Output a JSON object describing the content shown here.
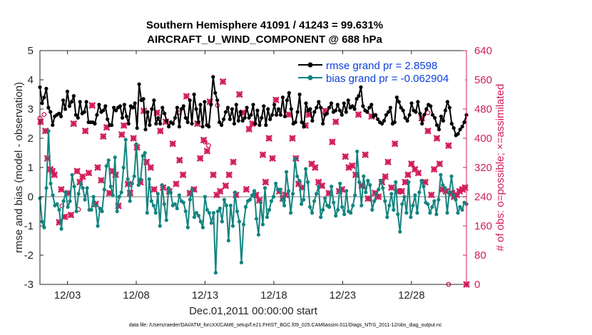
{
  "chart_data": {
    "type": "line",
    "title_line1": "Southern Hemisphere 41091 / 41243 = 99.631%",
    "title_line2": "AIRCRAFT_U_WIND_COMPONENT @ 688 hPa",
    "xlabel": "Dec.01,2011 00:00:00 start",
    "ylabel": "rmse and bias (model - observation)",
    "y2label": "# of obs: o=possible; ×=assimilated",
    "footnote": "data file: /Users/raeder/DAI/ATM_forcXX/CAM6_setup/f.e21.FHIST_BGC.f09_025.CAM6assim.011/Diags_NTrS_2011-12/obs_diag_output.nc",
    "xlim": [
      1,
      32
    ],
    "ylim": [
      -3,
      5
    ],
    "y2lim": [
      0,
      640
    ],
    "x_ticks": [
      3,
      8,
      13,
      18,
      23,
      28
    ],
    "x_tick_labels": [
      "12/03",
      "12/08",
      "12/13",
      "12/18",
      "12/23",
      "12/28"
    ],
    "y_ticks": [
      "-3",
      "-2",
      "-1",
      "0",
      "1",
      "2",
      "3",
      "4",
      "5"
    ],
    "y2_ticks": [
      "0",
      "80",
      "160",
      "240",
      "320",
      "400",
      "480",
      "560",
      "640"
    ],
    "colors": {
      "rmse": "#000000",
      "bias": "#12847f",
      "obs": "#d11d5a",
      "legend_text": "#0b3fe0",
      "zero_line": "#bdbdbd"
    },
    "series": [
      {
        "name": "rmse grand pr = 2.8598",
        "values": [
          3.75,
          3.2,
          3.4,
          3.7,
          3.05,
          2.9,
          2.45,
          2.75,
          2.8,
          2.85,
          2.75,
          3.3,
          3.0,
          3.6,
          3.1,
          3.25,
          3.45,
          2.8,
          2.7,
          3.25,
          2.85,
          2.9,
          3.25,
          2.55,
          2.55,
          2.55,
          2.5,
          2.8,
          3.15,
          2.9,
          2.95,
          3.1,
          2.65,
          2.45,
          2.45,
          3.05,
          2.95,
          3.05,
          3.1,
          2.7,
          3.15,
          2.75,
          2.5,
          3.1,
          3.05,
          3.2,
          2.35,
          3.85,
          3.3,
          3.35,
          2.3,
          2.9,
          2.45,
          3.0,
          3.3,
          2.5,
          2.7,
          2.5,
          3.05,
          2.85,
          2.6,
          2.4,
          2.55,
          2.5,
          2.7,
          3.05,
          2.4,
          3.0,
          3.1,
          2.7,
          2.55,
          3.3,
          2.5,
          3.5,
          3.0,
          2.55,
          3.15,
          2.4,
          3.25,
          2.45,
          2.4,
          3.15,
          4.1,
          3.55,
          3.3,
          2.55,
          2.45,
          2.65,
          2.9,
          3.05,
          2.65,
          3.0,
          2.5,
          3.15,
          2.6,
          2.9,
          2.6,
          2.7,
          3.05,
          2.7,
          2.8,
          3.15,
          2.5,
          2.95,
          2.45,
          2.7,
          3.1,
          2.45,
          3.0,
          2.65,
          2.8,
          3.15,
          2.8,
          3.0,
          2.8,
          3.4,
          2.75,
          3.3,
          3.55,
          3.0,
          2.5,
          2.55,
          2.9,
          3.5,
          2.55,
          2.4,
          3.2,
          2.95,
          3.0,
          2.6,
          2.9,
          3.05,
          3.25,
          3.05,
          2.5,
          2.8,
          2.85,
          3.05,
          3.2,
          2.9,
          2.95,
          3.15,
          2.95,
          2.8,
          3.2,
          2.9,
          3.3,
          3.05,
          3.1,
          3.0,
          3.35,
          3.45,
          3.75,
          3.1,
          2.95,
          2.9,
          3.05,
          3.15,
          2.75,
          2.8,
          2.65,
          2.55,
          2.5,
          2.6,
          2.8,
          2.9,
          3.05,
          2.5,
          2.55,
          3.4,
          3.25,
          3.05,
          2.95,
          2.7,
          2.6,
          2.8,
          3.2,
          2.95,
          2.9,
          3.25,
          2.85,
          2.5,
          2.8,
          3.0,
          3.15,
          3.1,
          2.8,
          2.7,
          2.45,
          2.3,
          2.75,
          2.6,
          2.95,
          3.25,
          3.05,
          2.5,
          2.35,
          2.1,
          2.15,
          2.3,
          2.4,
          2.55,
          2.8
        ]
      },
      {
        "name": "bias grand pr = -0.062904",
        "values": [
          -0.05,
          -0.85,
          -1.05,
          0.3,
          2.25,
          0.45,
          0.05,
          -0.3,
          -0.25,
          -0.45,
          -1.1,
          -0.15,
          0.15,
          -0.35,
          -0.15,
          0.75,
          0.35,
          -0.5,
          0.1,
          0.45,
          0.3,
          -0.1,
          0.3,
          -0.45,
          -0.45,
          0.0,
          -0.3,
          -1.0,
          -0.4,
          -0.5,
          0.25,
          1.05,
          1.25,
          0.35,
          0.05,
          1.35,
          -0.5,
          0.0,
          0.15,
          1.0,
          1.95,
          0.6,
          -0.15,
          0.45,
          0.7,
          1.8,
          0.4,
          0.6,
          1.4,
          1.5,
          -0.55,
          0.6,
          -0.15,
          -0.3,
          -0.55,
          0.1,
          -1.0,
          0.4,
          -0.25,
          -0.8,
          0.3,
          0.15,
          -0.3,
          -0.25,
          -0.4,
          0.05,
          -0.15,
          -0.2,
          -0.5,
          -1.05,
          -0.1,
          0.25,
          -0.7,
          -0.55,
          -0.65,
          -0.85,
          -1.05,
          0.0,
          -0.45,
          -0.55,
          -0.9,
          -0.55,
          -2.6,
          -0.5,
          -0.4,
          -0.85,
          -0.1,
          -0.3,
          -1.5,
          -0.3,
          -1.0,
          0.15,
          -0.5,
          -0.85,
          -2.25,
          -0.95,
          -0.35,
          -0.15,
          -0.1,
          0.05,
          0.2,
          -0.75,
          -1.3,
          -0.2,
          -0.95,
          0.3,
          -0.7,
          -0.45,
          -0.15,
          0.0,
          0.45,
          0.25,
          0.25,
          -0.1,
          -0.3,
          0.85,
          0.2,
          -0.55,
          0.1,
          1.3,
          0.7,
          0.55,
          -0.25,
          -0.1,
          0.95,
          0.5,
          -0.35,
          -0.55,
          -0.15,
          0.1,
          0.35,
          -0.7,
          -0.45,
          -0.05,
          -0.3,
          -0.35,
          0.35,
          -0.2,
          -0.65,
          -0.45,
          0.45,
          -0.35,
          -0.6,
          0.2,
          -0.5,
          -0.55,
          -0.3,
          0.05,
          1.55,
          0.5,
          -0.3,
          0.7,
          0.15,
          0.55,
          0.4,
          -0.45,
          -0.15,
          0.1,
          0.25,
          0.55,
          0.3,
          -0.15,
          -0.7,
          -0.3,
          0.1,
          -0.45,
          0.5,
          -0.6,
          -1.2,
          -0.25,
          0.0,
          -0.55,
          0.5,
          -0.7,
          -0.3,
          0.05,
          -0.55,
          0.15,
          0.55,
          0.35,
          -0.2,
          -0.25,
          -0.55,
          -0.35,
          -0.15,
          -0.6,
          -0.1,
          0.75,
          0.4,
          0.3,
          -0.55,
          0.15,
          0.7,
          0.05,
          -0.1,
          -0.55,
          -0.35,
          -0.45,
          -0.2,
          -0.25
        ]
      }
    ],
    "obs_possible": [
      [
        1.0,
        455
      ],
      [
        1.3,
        465
      ],
      [
        2.6,
        215
      ],
      [
        3.8,
        205
      ],
      [
        11.05,
        470
      ],
      [
        13.0,
        390
      ],
      [
        13.25,
        380
      ],
      [
        13.9,
        490
      ],
      [
        24.9,
        235
      ],
      [
        29.2,
        470
      ],
      [
        30.7,
        0
      ]
    ],
    "obs_assimilated": [
      [
        1.05,
        445
      ],
      [
        1.4,
        420
      ],
      [
        1.55,
        345
      ],
      [
        1.75,
        315
      ],
      [
        1.9,
        310
      ],
      [
        2.05,
        300
      ],
      [
        2.4,
        170
      ],
      [
        2.55,
        260
      ],
      [
        2.8,
        185
      ],
      [
        3.05,
        250
      ],
      [
        3.25,
        190
      ],
      [
        3.45,
        440
      ],
      [
        3.7,
        310
      ],
      [
        3.9,
        280
      ],
      [
        4.1,
        295
      ],
      [
        4.3,
        420
      ],
      [
        4.55,
        305
      ],
      [
        4.8,
        490
      ],
      [
        5.05,
        220
      ],
      [
        5.2,
        320
      ],
      [
        5.45,
        285
      ],
      [
        5.6,
        405
      ],
      [
        5.85,
        430
      ],
      [
        6.05,
        250
      ],
      [
        6.3,
        310
      ],
      [
        6.5,
        300
      ],
      [
        6.7,
        215
      ],
      [
        6.95,
        410
      ],
      [
        7.1,
        435
      ],
      [
        7.4,
        275
      ],
      [
        7.55,
        250
      ],
      [
        7.8,
        400
      ],
      [
        8.05,
        375
      ],
      [
        8.3,
        280
      ],
      [
        8.55,
        475
      ],
      [
        8.75,
        335
      ],
      [
        9.05,
        320
      ],
      [
        9.3,
        260
      ],
      [
        9.5,
        470
      ],
      [
        9.75,
        420
      ],
      [
        9.95,
        265
      ],
      [
        10.15,
        445
      ],
      [
        10.4,
        255
      ],
      [
        10.65,
        385
      ],
      [
        10.9,
        275
      ],
      [
        11.15,
        340
      ],
      [
        11.4,
        300
      ],
      [
        11.65,
        515
      ],
      [
        11.9,
        250
      ],
      [
        12.2,
        260
      ],
      [
        12.45,
        440
      ],
      [
        12.65,
        345
      ],
      [
        12.9,
        395
      ],
      [
        13.15,
        365
      ],
      [
        13.35,
        500
      ],
      [
        13.6,
        300
      ],
      [
        13.85,
        245
      ],
      [
        14.1,
        255
      ],
      [
        14.3,
        555
      ],
      [
        14.5,
        270
      ],
      [
        14.75,
        300
      ],
      [
        15.05,
        335
      ],
      [
        15.25,
        245
      ],
      [
        15.5,
        520
      ],
      [
        15.75,
        470
      ],
      [
        16.0,
        260
      ],
      [
        16.2,
        425
      ],
      [
        16.45,
        440
      ],
      [
        16.7,
        245
      ],
      [
        16.95,
        230
      ],
      [
        17.2,
        355
      ],
      [
        17.4,
        280
      ],
      [
        17.65,
        400
      ],
      [
        17.9,
        345
      ],
      [
        18.15,
        505
      ],
      [
        18.4,
        255
      ],
      [
        18.65,
        235
      ],
      [
        18.85,
        245
      ],
      [
        19.1,
        465
      ],
      [
        19.35,
        400
      ],
      [
        19.6,
        345
      ],
      [
        19.8,
        275
      ],
      [
        20.05,
        265
      ],
      [
        20.3,
        435
      ],
      [
        20.55,
        465
      ],
      [
        20.75,
        330
      ],
      [
        21.0,
        320
      ],
      [
        21.25,
        280
      ],
      [
        21.5,
        270
      ],
      [
        21.75,
        475
      ],
      [
        22.0,
        250
      ],
      [
        22.25,
        390
      ],
      [
        22.5,
        445
      ],
      [
        22.75,
        255
      ],
      [
        22.95,
        260
      ],
      [
        23.2,
        350
      ],
      [
        23.45,
        320
      ],
      [
        23.7,
        325
      ],
      [
        23.95,
        300
      ],
      [
        24.15,
        465
      ],
      [
        24.4,
        270
      ],
      [
        24.65,
        355
      ],
      [
        24.85,
        235
      ],
      [
        25.1,
        460
      ],
      [
        25.35,
        250
      ],
      [
        25.6,
        240
      ],
      [
        25.85,
        280
      ],
      [
        26.1,
        295
      ],
      [
        26.3,
        335
      ],
      [
        26.55,
        265
      ],
      [
        26.8,
        385
      ],
      [
        27.05,
        255
      ],
      [
        27.3,
        255
      ],
      [
        27.55,
        280
      ],
      [
        27.75,
        300
      ],
      [
        28.0,
        330
      ],
      [
        28.25,
        315
      ],
      [
        28.5,
        305
      ],
      [
        28.75,
        455
      ],
      [
        29.0,
        280
      ],
      [
        29.2,
        420
      ],
      [
        29.45,
        245
      ],
      [
        29.65,
        315
      ],
      [
        29.85,
        400
      ],
      [
        30.05,
        330
      ],
      [
        30.25,
        260
      ],
      [
        30.5,
        255
      ],
      [
        30.7,
        380
      ],
      [
        30.95,
        250
      ],
      [
        31.1,
        240
      ],
      [
        31.3,
        245
      ],
      [
        31.5,
        255
      ],
      [
        31.7,
        260
      ],
      [
        31.9,
        265
      ],
      [
        32.0,
        0
      ]
    ]
  }
}
